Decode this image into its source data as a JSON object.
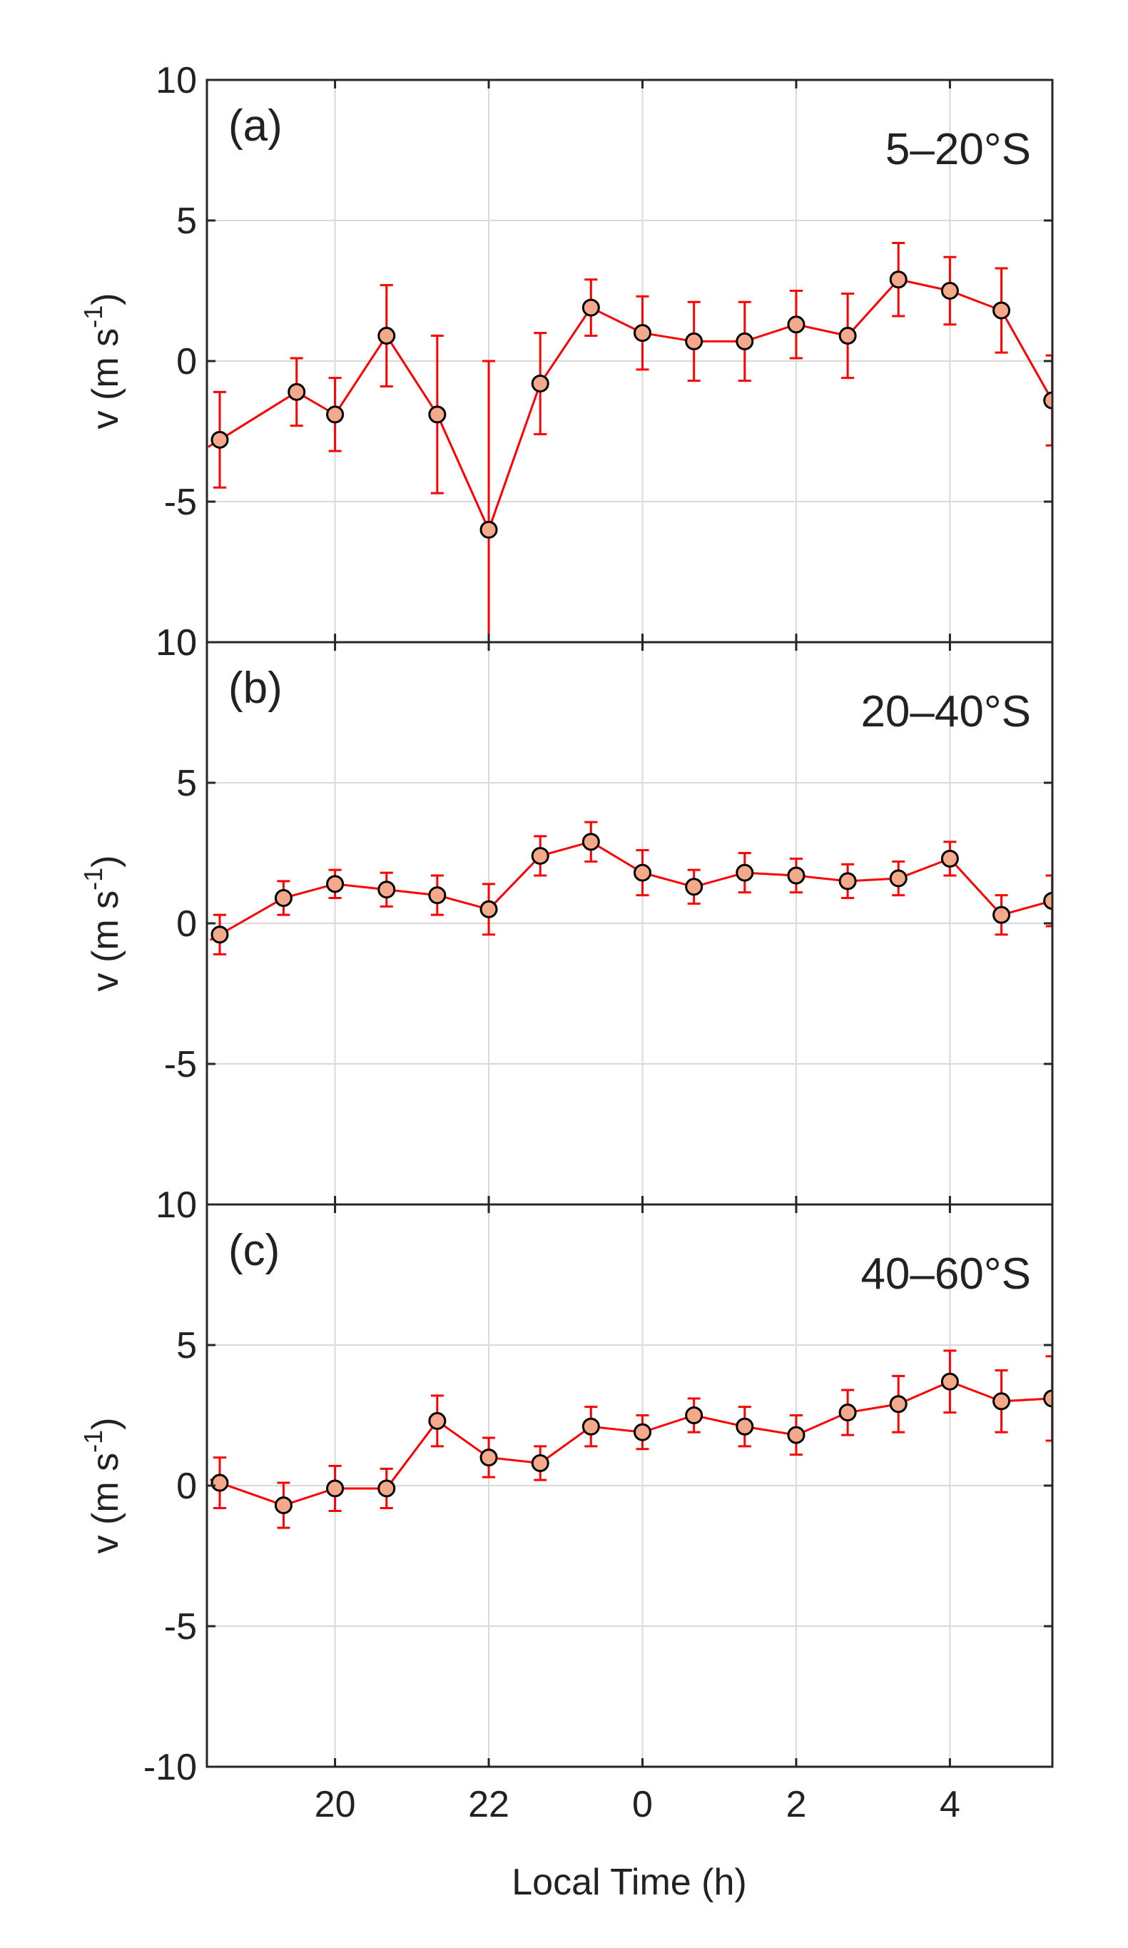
{
  "figure": {
    "xlabel": "Local Time (h)",
    "x_tick_labels": [
      "20",
      "22",
      "0",
      "2",
      "4"
    ],
    "colors": {
      "line": "#ff0000",
      "errorbar": "#ff0000",
      "marker_fill": "#f4a98a",
      "marker_edge": "#000000",
      "grid": "#d9d9d9",
      "axes": "#262626"
    }
  },
  "chart_data": [
    {
      "type": "line",
      "panel_label": "(a)",
      "title": "5–20°S",
      "ylabel": "v (m s",
      "ylabel_exp": "-1",
      "ylabel_close": ")",
      "xlabel": "Local Time (h)",
      "xlim": [
        18.333,
        29.333
      ],
      "x_ticks": [
        20,
        22,
        24,
        26,
        28
      ],
      "x_tick_labels": [
        "20",
        "22",
        "0",
        "2",
        "4"
      ],
      "ylim": [
        -10,
        10
      ],
      "y_ticks": [
        10,
        5,
        0,
        -5,
        10
      ],
      "y_tick_labels": [
        "10",
        "5",
        "0",
        "-5",
        "10"
      ],
      "grid": true,
      "series": [
        {
          "name": "v",
          "x": [
            18.5,
            19.5,
            20.0,
            20.67,
            21.33,
            22.0,
            22.67,
            23.33,
            24.0,
            24.67,
            25.33,
            26.0,
            26.67,
            27.33,
            28.0,
            28.67,
            29.33
          ],
          "y": [
            -2.8,
            -1.1,
            -1.9,
            0.9,
            -1.9,
            -6.0,
            -0.8,
            1.9,
            1.0,
            0.7,
            0.7,
            1.3,
            0.9,
            2.9,
            2.5,
            1.8,
            -1.4
          ],
          "err": [
            1.7,
            1.2,
            1.3,
            1.8,
            2.8,
            6.0,
            1.8,
            1.0,
            1.3,
            1.4,
            1.4,
            1.2,
            1.5,
            1.3,
            1.2,
            1.5,
            1.6
          ]
        }
      ]
    },
    {
      "type": "line",
      "panel_label": "(b)",
      "title": "20–40°S",
      "ylabel": "v (m s",
      "ylabel_exp": "-1",
      "ylabel_close": ")",
      "xlabel": "Local Time (h)",
      "xlim": [
        18.333,
        29.333
      ],
      "x_ticks": [
        20,
        22,
        24,
        26,
        28
      ],
      "x_tick_labels": [
        "20",
        "22",
        "0",
        "2",
        "4"
      ],
      "ylim": [
        -10,
        10
      ],
      "y_ticks": [
        10,
        5,
        0,
        -5
      ],
      "y_tick_labels": [
        "10",
        "5",
        "0",
        "-5"
      ],
      "grid": true,
      "series": [
        {
          "name": "v",
          "x": [
            18.5,
            19.33,
            20.0,
            20.67,
            21.33,
            22.0,
            22.67,
            23.33,
            24.0,
            24.67,
            25.33,
            26.0,
            26.67,
            27.33,
            28.0,
            28.67,
            29.33
          ],
          "y": [
            -0.4,
            0.9,
            1.4,
            1.2,
            1.0,
            0.5,
            2.4,
            2.9,
            1.8,
            1.3,
            1.8,
            1.7,
            1.5,
            1.6,
            2.3,
            0.3,
            0.8
          ],
          "err": [
            0.7,
            0.6,
            0.5,
            0.6,
            0.7,
            0.9,
            0.7,
            0.7,
            0.8,
            0.6,
            0.7,
            0.6,
            0.6,
            0.6,
            0.6,
            0.7,
            0.9
          ]
        }
      ]
    },
    {
      "type": "line",
      "panel_label": "(c)",
      "title": "40–60°S",
      "ylabel": "v (m s",
      "ylabel_exp": "-1",
      "ylabel_close": ")",
      "xlabel": "Local Time (h)",
      "xlim": [
        18.333,
        29.333
      ],
      "x_ticks": [
        20,
        22,
        24,
        26,
        28
      ],
      "x_tick_labels": [
        "20",
        "22",
        "0",
        "2",
        "4"
      ],
      "ylim": [
        -10,
        10
      ],
      "y_ticks": [
        10,
        5,
        0,
        -5,
        -10
      ],
      "y_tick_labels": [
        "10",
        "5",
        "0",
        "-5",
        "-10"
      ],
      "grid": true,
      "series": [
        {
          "name": "v",
          "x": [
            18.5,
            19.33,
            20.0,
            20.67,
            21.33,
            22.0,
            22.67,
            23.33,
            24.0,
            24.67,
            25.33,
            26.0,
            26.67,
            27.33,
            28.0,
            28.67,
            29.33
          ],
          "y": [
            0.1,
            -0.7,
            -0.1,
            -0.1,
            2.3,
            1.0,
            0.8,
            2.1,
            1.9,
            2.5,
            2.1,
            1.8,
            2.6,
            2.9,
            3.7,
            3.0,
            3.1
          ],
          "err": [
            0.9,
            0.8,
            0.8,
            0.7,
            0.9,
            0.7,
            0.6,
            0.7,
            0.6,
            0.6,
            0.7,
            0.7,
            0.8,
            1.0,
            1.1,
            1.1,
            1.5
          ]
        }
      ]
    }
  ]
}
